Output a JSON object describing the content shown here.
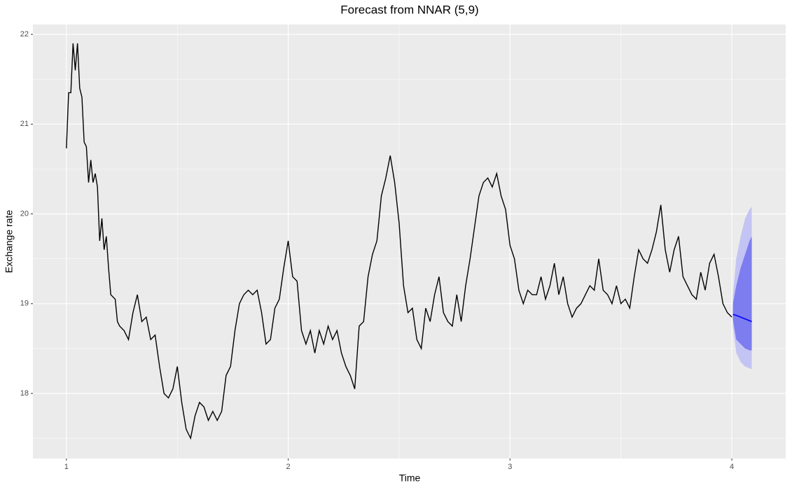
{
  "chart_data": {
    "type": "line",
    "title": "Forecast from NNAR (5,9)",
    "x_label": "Time",
    "y_label": "Exchange rate",
    "color": "#000000",
    "xlim": [
      0.849,
      4.243
    ],
    "ylim": [
      17.275,
      22.11
    ],
    "xticks": [
      1,
      2,
      3,
      4
    ],
    "yticks": [
      18,
      19,
      20,
      21,
      22
    ],
    "minor_xticks": [
      1.5,
      2.5,
      3.5
    ],
    "minor_yticks": [
      17.5,
      18.5,
      19.5,
      20.5,
      21.5
    ],
    "grid": true,
    "x": [
      1.0,
      1.01,
      1.02,
      1.03,
      1.04,
      1.05,
      1.06,
      1.07,
      1.08,
      1.09,
      1.1,
      1.11,
      1.12,
      1.13,
      1.14,
      1.15,
      1.16,
      1.17,
      1.18,
      1.19,
      1.2,
      1.22,
      1.23,
      1.24,
      1.26,
      1.28,
      1.3,
      1.32,
      1.34,
      1.36,
      1.38,
      1.4,
      1.42,
      1.44,
      1.46,
      1.48,
      1.5,
      1.52,
      1.54,
      1.56,
      1.58,
      1.6,
      1.62,
      1.64,
      1.66,
      1.68,
      1.7,
      1.72,
      1.74,
      1.76,
      1.78,
      1.8,
      1.82,
      1.84,
      1.86,
      1.88,
      1.9,
      1.92,
      1.94,
      1.96,
      1.98,
      2.0,
      2.02,
      2.04,
      2.06,
      2.08,
      2.1,
      2.12,
      2.14,
      2.16,
      2.18,
      2.2,
      2.22,
      2.24,
      2.26,
      2.28,
      2.3,
      2.32,
      2.34,
      2.36,
      2.38,
      2.4,
      2.42,
      2.44,
      2.46,
      2.48,
      2.5,
      2.52,
      2.54,
      2.56,
      2.58,
      2.6,
      2.62,
      2.64,
      2.66,
      2.68,
      2.7,
      2.72,
      2.74,
      2.76,
      2.78,
      2.8,
      2.82,
      2.84,
      2.86,
      2.88,
      2.9,
      2.92,
      2.94,
      2.96,
      2.98,
      3.0,
      3.02,
      3.04,
      3.06,
      3.08,
      3.1,
      3.12,
      3.14,
      3.16,
      3.18,
      3.2,
      3.22,
      3.24,
      3.26,
      3.28,
      3.3,
      3.32,
      3.34,
      3.36,
      3.38,
      3.4,
      3.42,
      3.44,
      3.46,
      3.48,
      3.5,
      3.52,
      3.54,
      3.56,
      3.58,
      3.6,
      3.62,
      3.64,
      3.66,
      3.68,
      3.7,
      3.72,
      3.74,
      3.76,
      3.78,
      3.8,
      3.82,
      3.84,
      3.86,
      3.88,
      3.9,
      3.92,
      3.94,
      3.96,
      3.98,
      4.0
    ],
    "values": [
      20.73,
      21.35,
      21.35,
      21.9,
      21.6,
      21.9,
      21.4,
      21.3,
      20.8,
      20.75,
      20.35,
      20.6,
      20.35,
      20.45,
      20.3,
      19.7,
      19.95,
      19.6,
      19.75,
      19.4,
      19.1,
      19.05,
      18.8,
      18.75,
      18.7,
      18.6,
      18.9,
      19.1,
      18.8,
      18.85,
      18.6,
      18.65,
      18.3,
      18.0,
      17.95,
      18.05,
      18.3,
      17.9,
      17.6,
      17.5,
      17.75,
      17.9,
      17.85,
      17.7,
      17.8,
      17.7,
      17.8,
      18.2,
      18.3,
      18.7,
      19.0,
      19.1,
      19.15,
      19.1,
      19.15,
      18.9,
      18.55,
      18.6,
      18.95,
      19.05,
      19.4,
      19.7,
      19.3,
      19.25,
      18.7,
      18.55,
      18.7,
      18.45,
      18.7,
      18.55,
      18.75,
      18.6,
      18.7,
      18.45,
      18.3,
      18.2,
      18.05,
      18.75,
      18.8,
      19.3,
      19.55,
      19.7,
      20.2,
      20.4,
      20.65,
      20.35,
      19.9,
      19.2,
      18.9,
      18.95,
      18.6,
      18.5,
      18.95,
      18.8,
      19.1,
      19.3,
      18.9,
      18.8,
      18.75,
      19.1,
      18.8,
      19.2,
      19.5,
      19.85,
      20.2,
      20.35,
      20.4,
      20.3,
      20.45,
      20.2,
      20.05,
      19.65,
      19.5,
      19.15,
      19.0,
      19.15,
      19.1,
      19.1,
      19.3,
      19.05,
      19.2,
      19.45,
      19.1,
      19.3,
      19.0,
      18.85,
      18.95,
      19.0,
      19.1,
      19.2,
      19.15,
      19.5,
      19.15,
      19.1,
      19.0,
      19.2,
      19.0,
      19.05,
      18.95,
      19.3,
      19.6,
      19.5,
      19.45,
      19.6,
      19.8,
      20.1,
      19.6,
      19.35,
      19.6,
      19.75,
      19.3,
      19.2,
      19.1,
      19.05,
      19.35,
      19.15,
      19.45,
      19.55,
      19.3,
      19.0,
      18.9,
      18.85
    ],
    "forecast": {
      "x": [
        4.005,
        4.02,
        4.04,
        4.06,
        4.08,
        4.09
      ],
      "mean": [
        18.88,
        18.87,
        18.85,
        18.83,
        18.81,
        18.8
      ],
      "lower_80": [
        18.82,
        18.6,
        18.55,
        18.5,
        18.48,
        18.48
      ],
      "upper_80": [
        19.0,
        19.2,
        19.4,
        19.55,
        19.7,
        19.75
      ],
      "lower_95": [
        18.75,
        18.45,
        18.35,
        18.3,
        18.28,
        18.27
      ],
      "upper_95": [
        19.1,
        19.5,
        19.75,
        19.95,
        20.05,
        20.08
      ],
      "color": "#0000ff",
      "color_80": "#7d7def",
      "color_95": "#c4c4f4"
    }
  }
}
